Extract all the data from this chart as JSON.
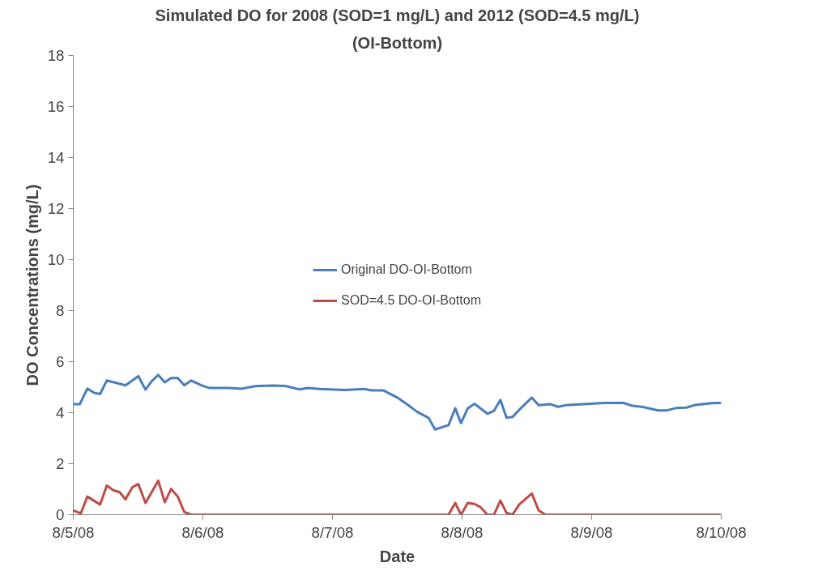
{
  "chart_data": {
    "type": "line",
    "title": "Simulated DO for 2008 (SOD=1 mg/L) and 2012 (SOD=4.5 mg/L)",
    "subtitle": "(OI-Bottom)",
    "xlabel": "Date",
    "ylabel": "DO Concentrations (mg/L)",
    "xlim": [
      "2008-08-05",
      "2008-08-10"
    ],
    "xticks": [
      {
        "value": "2008-08-05",
        "label": "8/5/08"
      },
      {
        "value": "2008-08-06",
        "label": "8/6/08"
      },
      {
        "value": "2008-08-07",
        "label": "8/7/08"
      },
      {
        "value": "2008-08-08",
        "label": "8/8/08"
      },
      {
        "value": "2008-08-09",
        "label": "8/9/08"
      },
      {
        "value": "2008-08-10",
        "label": "8/10/08"
      }
    ],
    "ylim": [
      0,
      18
    ],
    "yticks": [
      0,
      2,
      4,
      6,
      8,
      10,
      12,
      14,
      16,
      18
    ],
    "grid": false,
    "legend": "center",
    "marker": "none",
    "line_style": "solid",
    "series": [
      {
        "name": "Original DO-OI-Bottom",
        "color": "#4a7ebb",
        "x": [
          "2008-08-05T00:00",
          "2008-08-05T01:12",
          "2008-08-05T02:36",
          "2008-08-05T03:52",
          "2008-08-05T04:58",
          "2008-08-05T06:12",
          "2008-08-05T09:40",
          "2008-08-05T12:03",
          "2008-08-05T13:22",
          "2008-08-05T14:28",
          "2008-08-05T15:44",
          "2008-08-05T16:57",
          "2008-08-05T18:07",
          "2008-08-05T19:21",
          "2008-08-05T20:33",
          "2008-08-05T21:50",
          "2008-08-05T23:46",
          "2008-08-06T01:08",
          "2008-08-06T04:44",
          "2008-08-06T07:12",
          "2008-08-06T09:42",
          "2008-08-06T13:00",
          "2008-08-06T15:14",
          "2008-08-06T17:59",
          "2008-08-06T19:22",
          "2008-08-06T21:35",
          "2008-08-07T02:17",
          "2008-08-07T05:51",
          "2008-08-07T07:15",
          "2008-08-07T09:27",
          "2008-08-07T11:57",
          "2008-08-07T14:27",
          "2008-08-07T15:32",
          "2008-08-07T17:46",
          "2008-08-07T19:00",
          "2008-08-07T21:30",
          "2008-08-07T22:44",
          "2008-08-07T23:48",
          "2008-08-08T01:03",
          "2008-08-08T02:18",
          "2008-08-08T04:41",
          "2008-08-08T05:54",
          "2008-08-08T07:06",
          "2008-08-08T08:14",
          "2008-08-08T09:20",
          "2008-08-08T10:52",
          "2008-08-08T12:55",
          "2008-08-08T14:11",
          "2008-08-08T16:24",
          "2008-08-08T17:48",
          "2008-08-08T19:09",
          "2008-08-08T22:28",
          "2008-08-09T02:20",
          "2008-08-09T05:56",
          "2008-08-09T07:19",
          "2008-08-09T09:32",
          "2008-08-09T12:17",
          "2008-08-09T13:57",
          "2008-08-09T15:36",
          "2008-08-09T17:33",
          "2008-08-09T18:55",
          "2008-08-09T22:13",
          "2008-08-10T00:00"
        ],
        "values": [
          4.33,
          4.33,
          4.94,
          4.78,
          4.73,
          5.26,
          5.07,
          5.43,
          4.9,
          5.22,
          5.48,
          5.19,
          5.36,
          5.36,
          5.07,
          5.26,
          5.07,
          4.97,
          4.97,
          4.94,
          5.04,
          5.06,
          5.05,
          4.91,
          4.97,
          4.93,
          4.89,
          4.93,
          4.87,
          4.87,
          4.6,
          4.23,
          4.05,
          3.8,
          3.34,
          3.51,
          4.17,
          3.59,
          4.17,
          4.35,
          3.96,
          4.07,
          4.5,
          3.8,
          3.83,
          4.17,
          4.59,
          4.29,
          4.33,
          4.23,
          4.29,
          4.33,
          4.38,
          4.38,
          4.28,
          4.22,
          4.09,
          4.09,
          4.18,
          4.2,
          4.29,
          4.37,
          4.38
        ]
      },
      {
        "name": "SOD=4.5 DO-OI-Bottom",
        "color": "#be4b48",
        "x": [
          "2008-08-05T00:00",
          "2008-08-05T01:23",
          "2008-08-05T02:36",
          "2008-08-05T04:58",
          "2008-08-05T06:12",
          "2008-08-05T07:28",
          "2008-08-05T08:34",
          "2008-08-05T09:40",
          "2008-08-05T10:57",
          "2008-08-05T12:03",
          "2008-08-05T13:22",
          "2008-08-05T15:44",
          "2008-08-05T16:57",
          "2008-08-05T18:07",
          "2008-08-05T19:21",
          "2008-08-05T20:33",
          "2008-08-05T21:50",
          "2008-08-07T21:30",
          "2008-08-07T22:44",
          "2008-08-07T23:48",
          "2008-08-08T01:03",
          "2008-08-08T02:18",
          "2008-08-08T03:24",
          "2008-08-08T04:41",
          "2008-08-08T05:54",
          "2008-08-08T07:06",
          "2008-08-08T08:14",
          "2008-08-08T09:20",
          "2008-08-08T10:35",
          "2008-08-08T12:55",
          "2008-08-08T14:11",
          "2008-08-08T15:27",
          "2008-08-10T00:00"
        ],
        "values": [
          0.17,
          0.05,
          0.71,
          0.4,
          1.14,
          0.95,
          0.89,
          0.6,
          1.08,
          1.2,
          0.46,
          1.33,
          0.49,
          1.01,
          0.71,
          0.11,
          0,
          0,
          0.46,
          0,
          0.46,
          0.42,
          0.3,
          0,
          0,
          0.55,
          0.07,
          0,
          0.4,
          0.83,
          0.17,
          0,
          0
        ]
      }
    ]
  }
}
